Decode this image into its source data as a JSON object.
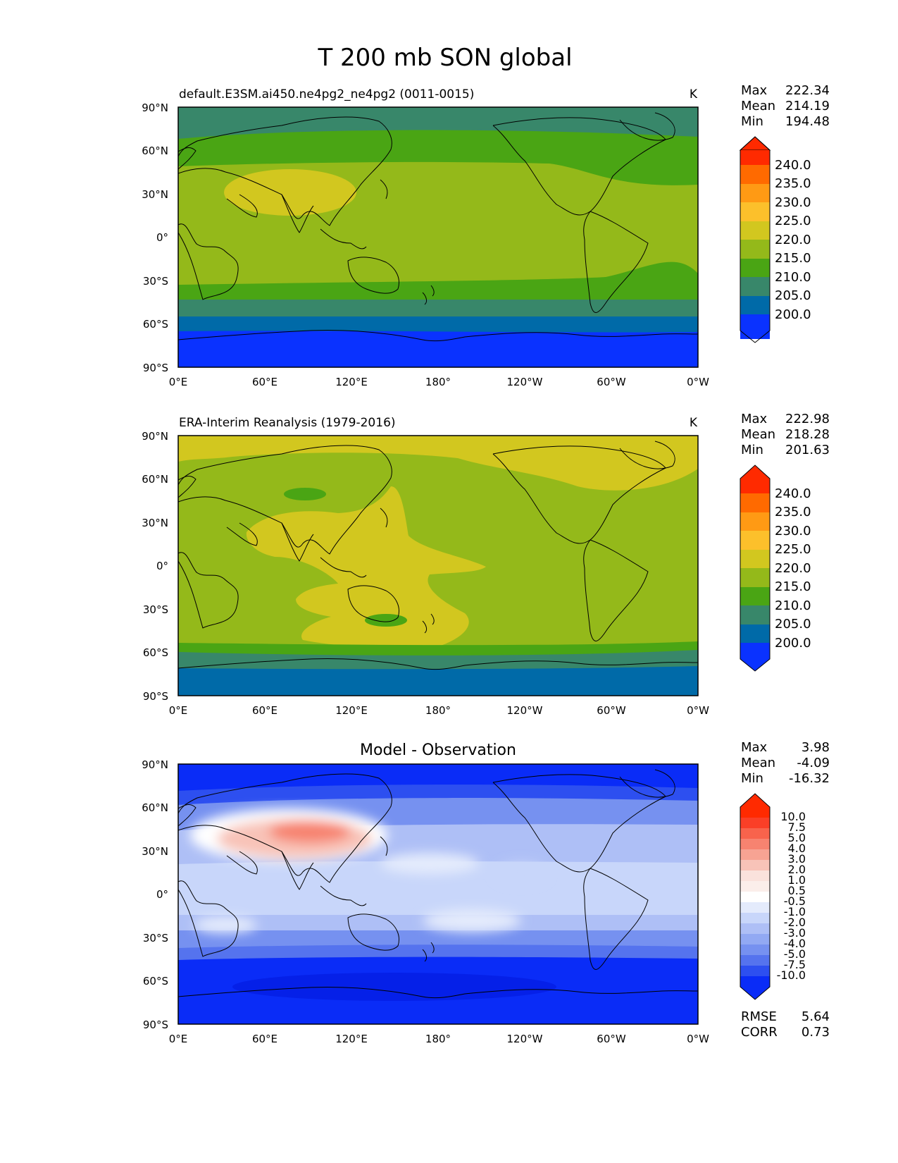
{
  "figure": {
    "title": "T 200 mb SON global",
    "x_ticks": [
      "0°E",
      "60°E",
      "120°E",
      "180°",
      "120°W",
      "60°W",
      "0°W"
    ],
    "y_ticks": [
      "90°N",
      "60°N",
      "30°N",
      "0°",
      "30°S",
      "60°S",
      "90°S"
    ]
  },
  "chart_data": [
    {
      "type": "heatmap",
      "panel": "test",
      "title": "default.E3SM.ai450.ne4pg2_ne4pg2 (0011-0015)",
      "units": "K",
      "stats": [
        {
          "label": "Max",
          "value": "222.34"
        },
        {
          "label": "Mean",
          "value": "214.19"
        },
        {
          "label": "Min",
          "value": "194.48"
        }
      ],
      "xlim": [
        0,
        360
      ],
      "ylim": [
        -90,
        90
      ],
      "colorbar": {
        "levels": [
          "240.0",
          "235.0",
          "230.0",
          "225.0",
          "220.0",
          "215.0",
          "210.0",
          "205.0",
          "200.0"
        ],
        "colors": [
          "#ff2a00",
          "#ff6a00",
          "#ff9a14",
          "#fcc02b",
          "#d2c71f",
          "#94b91a",
          "#4aa514",
          "#38876a",
          "#006aa8",
          "#0a32ff"
        ]
      },
      "bands": [
        {
          "lat_min": 67,
          "lat_max": 90,
          "level": "205-210"
        },
        {
          "lat_min": 47,
          "lat_max": 67,
          "level": "210-215"
        },
        {
          "lat_min": 24,
          "lat_max": 47,
          "level": "215-220"
        },
        {
          "lat_min": -30,
          "lat_max": 24,
          "level": "215-220"
        },
        {
          "lat_min": -40,
          "lat_max": -30,
          "level": "210-215"
        },
        {
          "lat_min": -54,
          "lat_max": -40,
          "level": "205-210"
        },
        {
          "lat_min": -64,
          "lat_max": -54,
          "level": "200-205"
        },
        {
          "lat_min": -90,
          "lat_max": -64,
          "level": "<200"
        }
      ]
    },
    {
      "type": "heatmap",
      "panel": "reference",
      "title": "ERA-Interim Reanalysis (1979-2016)",
      "units": "K",
      "stats": [
        {
          "label": "Max",
          "value": "222.98"
        },
        {
          "label": "Mean",
          "value": "218.28"
        },
        {
          "label": "Min",
          "value": "201.63"
        }
      ],
      "xlim": [
        0,
        360
      ],
      "ylim": [
        -90,
        90
      ],
      "colorbar": {
        "levels": [
          "240.0",
          "235.0",
          "230.0",
          "225.0",
          "220.0",
          "215.0",
          "210.0",
          "205.0",
          "200.0"
        ],
        "colors": [
          "#ff2a00",
          "#ff6a00",
          "#ff9a14",
          "#fcc02b",
          "#d2c71f",
          "#94b91a",
          "#4aa514",
          "#38876a",
          "#006aa8",
          "#0a32ff"
        ]
      },
      "bands": [
        {
          "lat_min": 70,
          "lat_max": 90,
          "level": "220-225"
        },
        {
          "lat_min": -50,
          "lat_max": 70,
          "level": "215-220"
        },
        {
          "lat_min": -58,
          "lat_max": -50,
          "level": "210-215"
        },
        {
          "lat_min": -68,
          "lat_max": -58,
          "level": "205-210"
        },
        {
          "lat_min": -90,
          "lat_max": -68,
          "level": "200-205"
        }
      ]
    },
    {
      "type": "heatmap",
      "panel": "difference",
      "title": "Model - Observation",
      "units": "K",
      "stats": [
        {
          "label": "Max",
          "value": "3.98"
        },
        {
          "label": "Mean",
          "value": "-4.09"
        },
        {
          "label": "Min",
          "value": "-16.32"
        }
      ],
      "xlim": [
        0,
        360
      ],
      "ylim": [
        -90,
        90
      ],
      "colorbar": {
        "levels": [
          "10.0",
          "7.5",
          "5.0",
          "4.0",
          "3.0",
          "2.0",
          "1.0",
          "0.5",
          "-0.5",
          "-1.0",
          "-2.0",
          "-3.0",
          "-4.0",
          "-5.0",
          "-7.5",
          "-10.0"
        ],
        "colors": [
          "#ff2a00",
          "#fa3f27",
          "#f8634c",
          "#f78370",
          "#f7a393",
          "#f8c3b8",
          "#fae2dc",
          "#fbeeea",
          "#ffffff",
          "#e4ebfc",
          "#c8d6fa",
          "#aebff6",
          "#92a9f3",
          "#7691f0",
          "#5573ee",
          "#2d4ff0",
          "#0a2cf7"
        ]
      },
      "bands": [
        {
          "lat_min": 75,
          "lat_max": 90,
          "level": "<-10"
        },
        {
          "lat_min": 58,
          "lat_max": 75,
          "level": "-7.5 to -5"
        },
        {
          "lat_min": 40,
          "lat_max": 58,
          "level": "-4 to -3"
        },
        {
          "lat_min": 15,
          "lat_max": 40,
          "level": "-3 to -2"
        },
        {
          "lat_min": -25,
          "lat_max": 15,
          "level": "-3 to -2"
        },
        {
          "lat_min": -38,
          "lat_max": -25,
          "level": "-4 to -3"
        },
        {
          "lat_min": -45,
          "lat_max": -38,
          "level": "-7.5 to -5"
        },
        {
          "lat_min": -90,
          "lat_max": -45,
          "level": "<-10"
        }
      ],
      "metrics": [
        {
          "label": "RMSE",
          "value": "5.64"
        },
        {
          "label": "CORR",
          "value": "0.73"
        }
      ]
    }
  ]
}
